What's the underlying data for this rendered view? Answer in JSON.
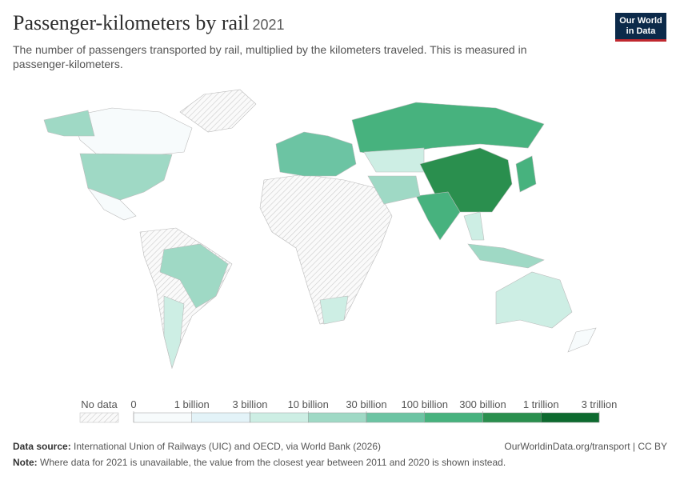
{
  "header": {
    "title": "Passenger-kilometers by rail",
    "year": "2021",
    "subtitle": "The number of passengers transported by rail, multiplied by the kilometers traveled. This is measured in passenger-kilometers.",
    "logo": [
      "Our World",
      "in Data"
    ]
  },
  "legend": {
    "no_data": "No data",
    "ticks": [
      0,
      {
        "value": 1000000000,
        "label": "1 billion"
      },
      {
        "value": 3000000000,
        "label": "3 billion"
      },
      {
        "value": 10000000000,
        "label": "10 billion"
      },
      {
        "value": 30000000000,
        "label": "30 billion"
      },
      {
        "value": 100000000000,
        "label": "100 billion"
      },
      {
        "value": 300000000000,
        "label": "300 billion"
      },
      {
        "value": 1000000000000,
        "label": "1 trillion"
      },
      {
        "value": 3000000000000,
        "label": "3 trillion"
      }
    ],
    "colors": [
      "#f7fbfc",
      "#e3f3f8",
      "#cdeee4",
      "#9fd9c5",
      "#6cc4a3",
      "#47b27e",
      "#2a8f4e",
      "#0d6a2f"
    ]
  },
  "footer": {
    "source_label": "Data source:",
    "source": "International Union of Railways (UIC) and OECD, via World Bank (2026)",
    "url": "OurWorldinData.org/transport | CC BY",
    "note_label": "Note:",
    "note": "Where data for 2021 is unavailable, the value from the closest year between 2011 and 2020 is shown instead."
  }
}
